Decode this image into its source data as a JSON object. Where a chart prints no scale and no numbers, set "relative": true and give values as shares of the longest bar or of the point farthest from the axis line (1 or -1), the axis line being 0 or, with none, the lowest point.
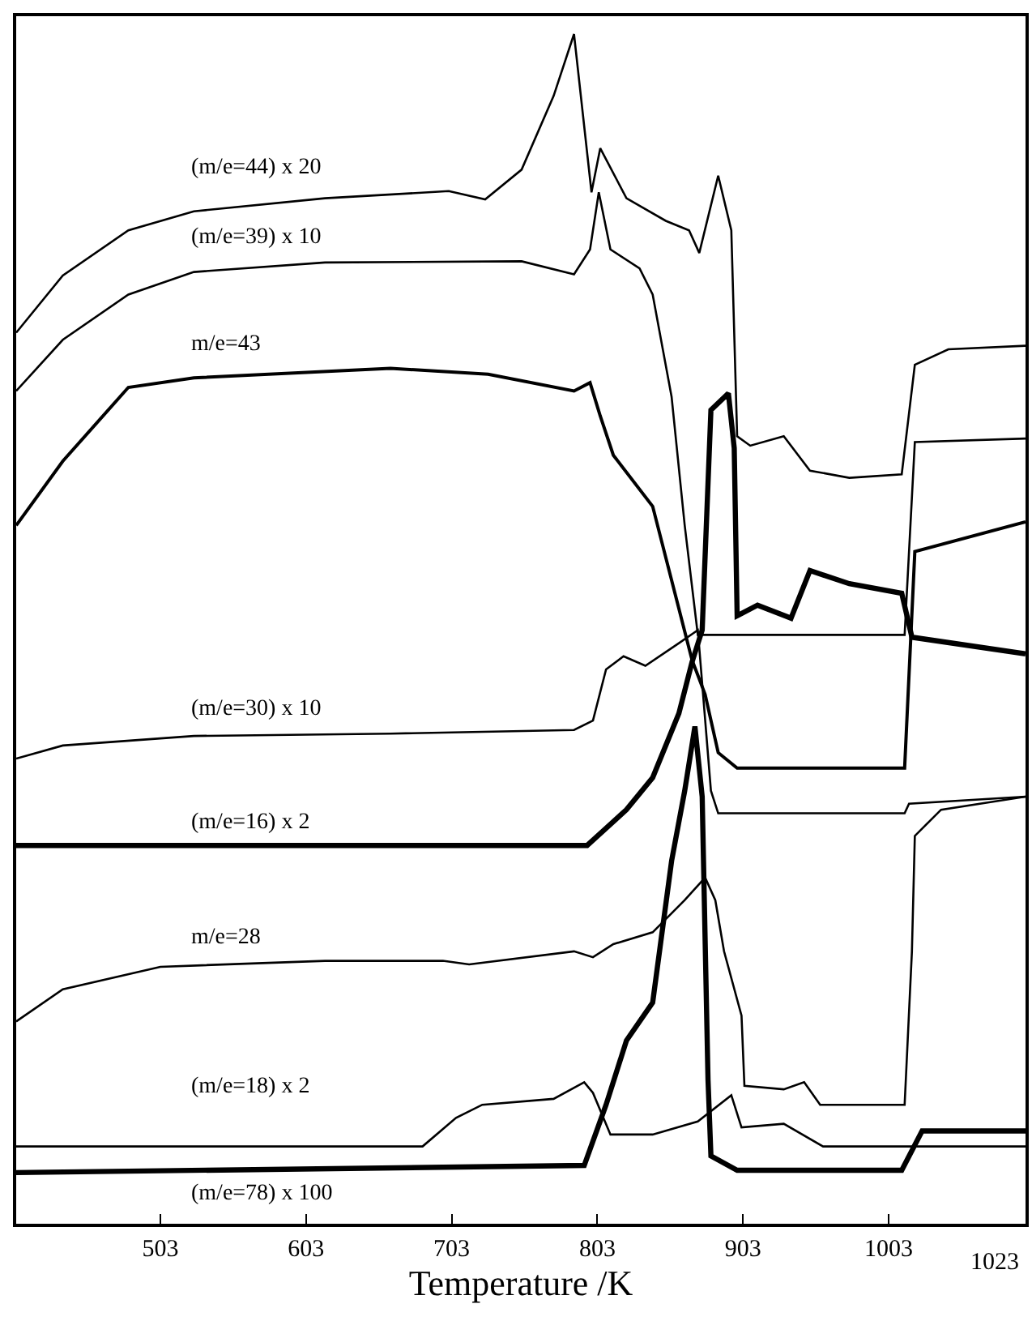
{
  "chart_data": {
    "type": "line",
    "xlabel": "Temperature /K",
    "relative": true,
    "legend": false,
    "marker": "none",
    "line_style": "solid",
    "xlim": [
      404,
      1097
    ],
    "xticks": [
      503,
      603,
      703,
      803,
      903,
      1003
    ],
    "annotations": [
      "1023"
    ],
    "series": [
      {
        "name": "(m/e=44) x 20",
        "color": "#000000",
        "x": [
          404,
          436,
          481,
          526,
          616,
          701,
          726,
          751,
          773,
          787,
          799,
          805,
          823,
          850,
          866,
          873,
          886,
          895,
          899,
          908,
          931,
          949,
          976,
          1012,
          1021,
          1044,
          1097
        ],
        "values": [
          0.749,
          0.797,
          0.835,
          0.851,
          0.862,
          0.868,
          0.861,
          0.886,
          0.948,
          1.0,
          0.867,
          0.904,
          0.862,
          0.843,
          0.835,
          0.816,
          0.881,
          0.835,
          0.662,
          0.654,
          0.662,
          0.633,
          0.627,
          0.63,
          0.722,
          0.735,
          0.738
        ]
      },
      {
        "name": "(m/e=39) x 10",
        "color": "#000000",
        "x": [
          404,
          436,
          481,
          526,
          616,
          751,
          787,
          798,
          804,
          812,
          832,
          841,
          854,
          863,
          872,
          884,
          1014,
          1021,
          1097
        ],
        "values": [
          0.7,
          0.743,
          0.781,
          0.8,
          0.808,
          0.809,
          0.798,
          0.819,
          0.867,
          0.819,
          0.803,
          0.781,
          0.695,
          0.587,
          0.495,
          0.495,
          0.495,
          0.657,
          0.66
        ]
      },
      {
        "name": "m/e=43",
        "color": "#000000",
        "x": [
          404,
          436,
          481,
          526,
          661,
          728,
          787,
          798,
          805,
          814,
          841,
          859,
          868,
          877,
          886,
          899,
          1014,
          1021,
          1097
        ],
        "values": [
          0.587,
          0.641,
          0.703,
          0.711,
          0.719,
          0.714,
          0.7,
          0.707,
          0.679,
          0.646,
          0.603,
          0.517,
          0.474,
          0.445,
          0.396,
          0.383,
          0.383,
          0.565,
          0.59
        ]
      },
      {
        "name": "(m/e=30) x 10",
        "color": "#000000",
        "x": [
          404,
          436,
          526,
          661,
          787,
          800,
          809,
          821,
          836,
          859,
          872,
          881,
          886,
          1014,
          1017,
          1097
        ],
        "values": [
          0.391,
          0.402,
          0.41,
          0.412,
          0.415,
          0.423,
          0.466,
          0.477,
          0.469,
          0.488,
          0.499,
          0.364,
          0.345,
          0.345,
          0.353,
          0.359
        ]
      },
      {
        "name": "(m/e=16) x 2",
        "color": "#000000",
        "x": [
          404,
          796,
          823,
          841,
          859,
          868,
          875,
          881,
          893,
          897,
          899,
          913,
          936,
          949,
          976,
          1012,
          1019,
          1097
        ],
        "values": [
          0.318,
          0.318,
          0.348,
          0.375,
          0.429,
          0.472,
          0.499,
          0.684,
          0.698,
          0.652,
          0.511,
          0.52,
          0.509,
          0.549,
          0.538,
          0.53,
          0.493,
          0.479
        ]
      },
      {
        "name": "m/e=28",
        "color": "#000000",
        "x": [
          404,
          436,
          503,
          616,
          697,
          715,
          787,
          800,
          814,
          841,
          863,
          877,
          884,
          890,
          902,
          904,
          931,
          945,
          956,
          1014,
          1019,
          1021,
          1039,
          1097
        ],
        "values": [
          0.17,
          0.197,
          0.216,
          0.221,
          0.221,
          0.218,
          0.229,
          0.224,
          0.235,
          0.245,
          0.272,
          0.291,
          0.272,
          0.229,
          0.175,
          0.116,
          0.113,
          0.119,
          0.1,
          0.1,
          0.229,
          0.326,
          0.348,
          0.359
        ]
      },
      {
        "name": "(m/e=18) x 2",
        "color": "#000000",
        "x": [
          404,
          683,
          706,
          724,
          773,
          794,
          800,
          812,
          841,
          872,
          895,
          902,
          931,
          958,
          1097
        ],
        "values": [
          0.065,
          0.065,
          0.089,
          0.1,
          0.105,
          0.119,
          0.11,
          0.075,
          0.075,
          0.086,
          0.108,
          0.081,
          0.084,
          0.065,
          0.065
        ]
      },
      {
        "name": "(m/e=78) x 100",
        "color": "#000000",
        "x": [
          404,
          794,
          809,
          823,
          841,
          854,
          863,
          870,
          875,
          879,
          881,
          899,
          1012,
          1026,
          1097
        ],
        "values": [
          0.043,
          0.049,
          0.1,
          0.154,
          0.186,
          0.305,
          0.364,
          0.418,
          0.359,
          0.121,
          0.057,
          0.045,
          0.045,
          0.078,
          0.078
        ]
      }
    ]
  }
}
